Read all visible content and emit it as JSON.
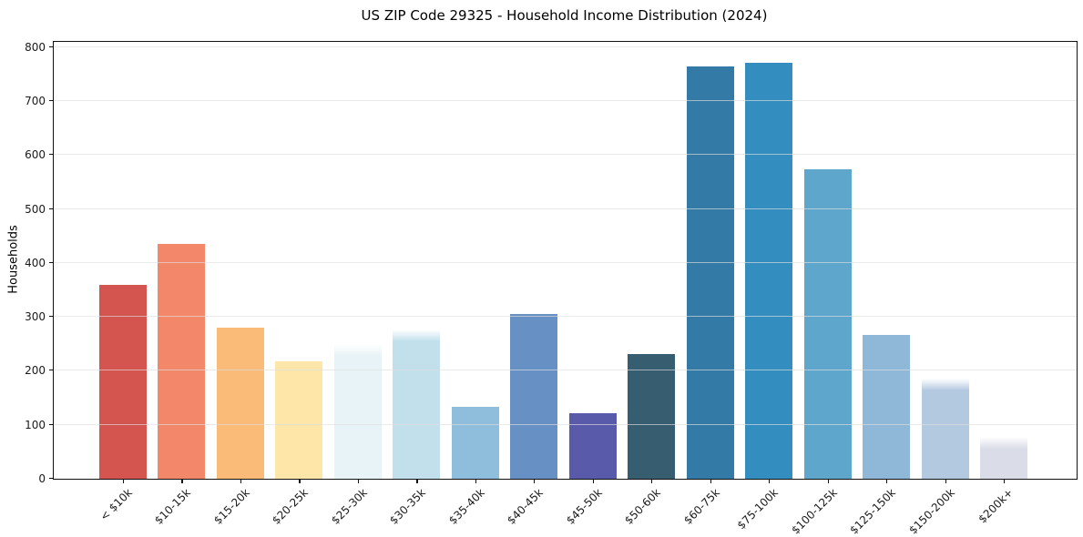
{
  "chart_data": {
    "type": "bar",
    "title": "US ZIP Code 29325 - Household Income Distribution (2024)",
    "ylabel": "Households",
    "xlabel": "",
    "categories": [
      "< $10k",
      "$10-15k",
      "$15-20k",
      "$20-25k",
      "$25-30k",
      "$30-35k",
      "$35-40k",
      "$40-45k",
      "$45-50k",
      "$50-60k",
      "$60-75k",
      "$75-100k",
      "$100-125k",
      "$125-150k",
      "$150-200k",
      "$200k+"
    ],
    "values": [
      360,
      435,
      280,
      218,
      250,
      277,
      133,
      305,
      121,
      232,
      765,
      772,
      573,
      266,
      186,
      77
    ],
    "bar_colors": [
      "#d4544f",
      "#f2876a",
      "#fabb78",
      "#fde6a8",
      "#e7f3f6",
      "#c2e0ec",
      "#8fbddc",
      "#6790c4",
      "#5a5aab",
      "#375d70",
      "#337aa6",
      "#338dbe",
      "#5fa6cc",
      "#8fb8d8",
      "#b3c9e0",
      "#dadce8"
    ],
    "soft_top_indices": [
      4,
      5,
      14,
      15
    ],
    "ylim": [
      0,
      810
    ],
    "yticks": [
      0,
      100,
      200,
      300,
      400,
      500,
      600,
      700,
      800
    ],
    "grid": true,
    "legend": "none",
    "colors": {
      "grid": "#ebebeb",
      "axis": "#111111",
      "text": "#1a1a1a",
      "background": "#ffffff"
    }
  }
}
